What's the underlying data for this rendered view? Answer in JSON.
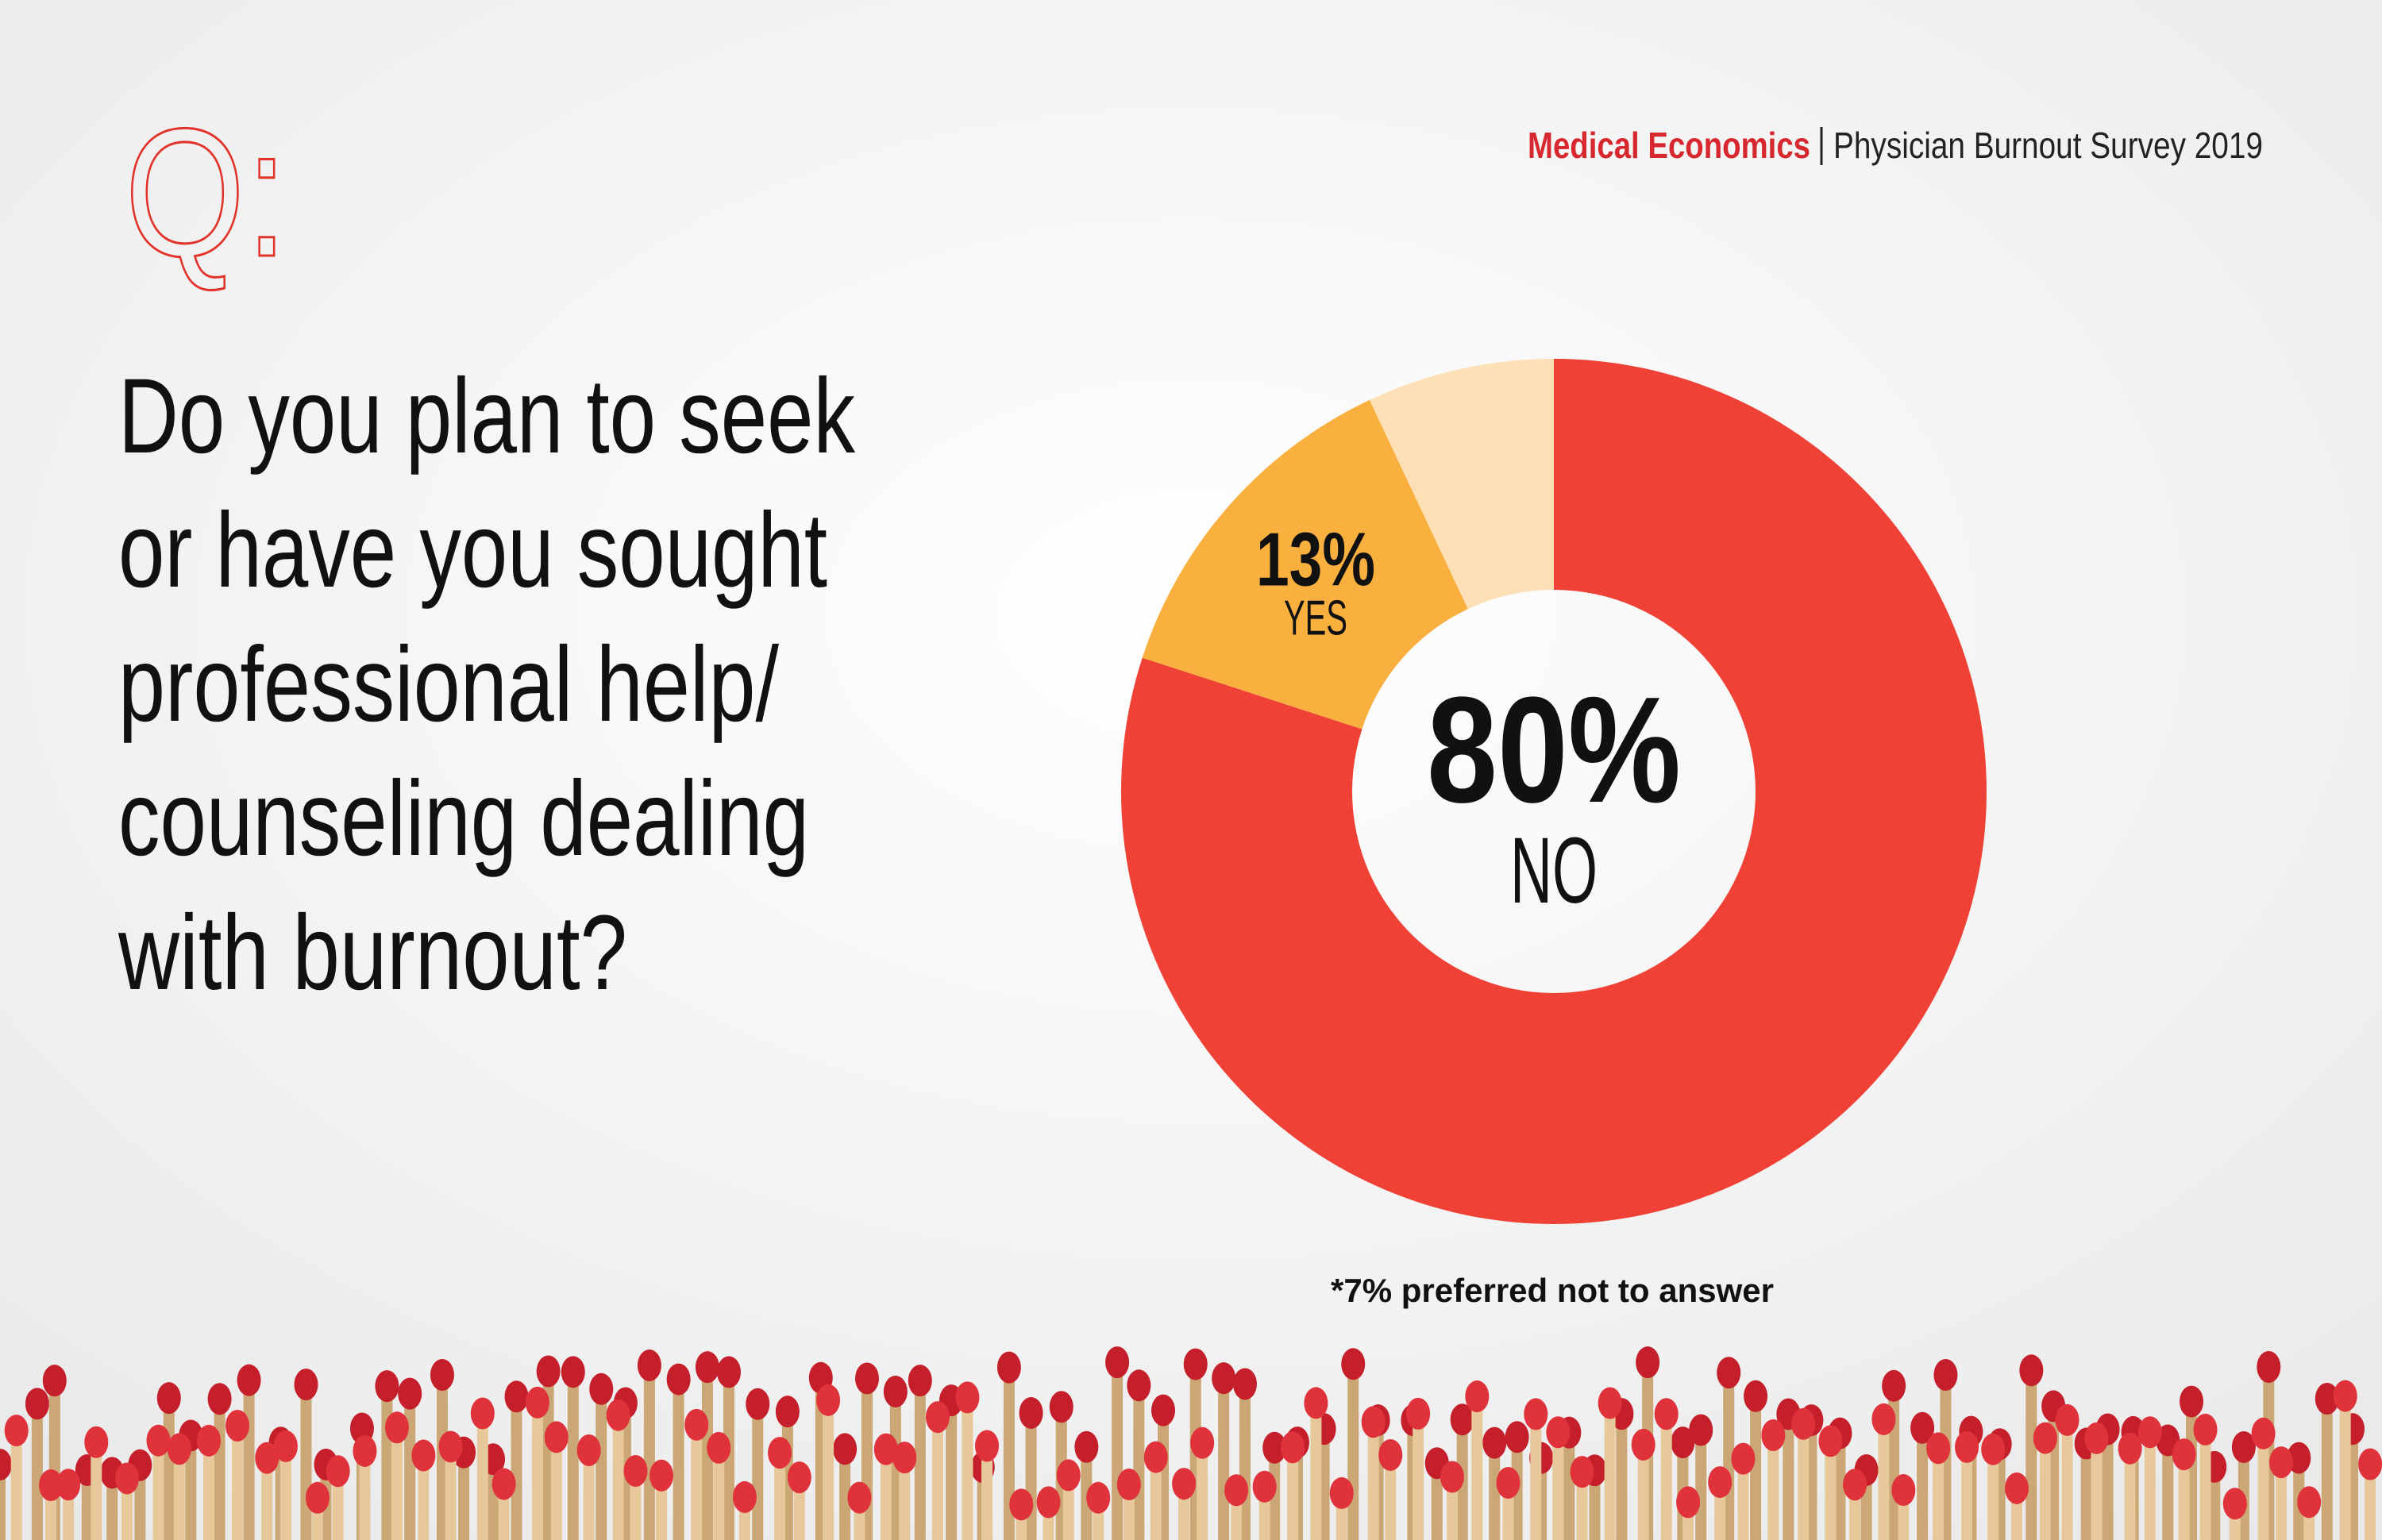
{
  "header": {
    "q": "Q:",
    "brand": "Medical Economics",
    "survey": "Physician Burnout Survey 2019"
  },
  "chart_data": {
    "type": "donut",
    "title": [
      "Do you plan to seek",
      "or have you sought",
      "professional help/",
      "counseling dealing",
      "with burnout?"
    ],
    "categories": [
      "NO",
      "YES",
      null
    ],
    "values": [
      80,
      13,
      7
    ],
    "value_labels": [
      "80%",
      "13%",
      null
    ],
    "colors": [
      "#ef4136",
      "#f9b03f",
      "#fde0b5"
    ],
    "note": "*7% preferred not to answer"
  }
}
